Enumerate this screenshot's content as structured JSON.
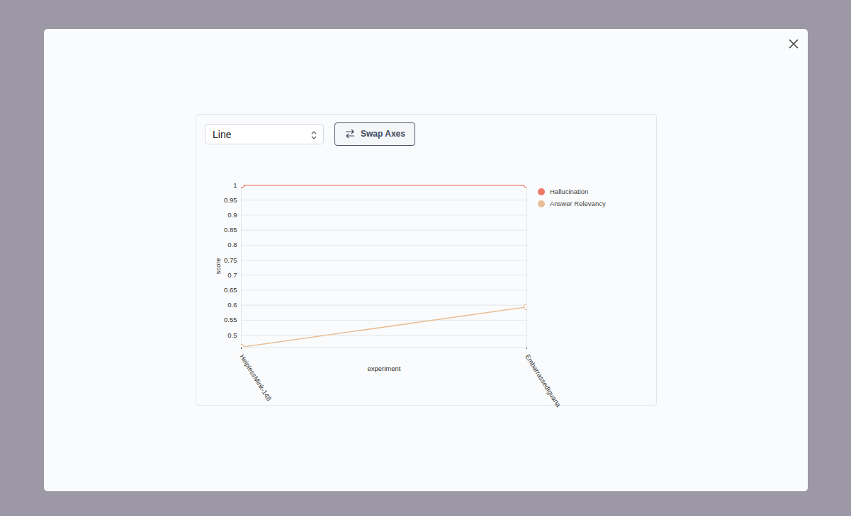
{
  "chart_data": {
    "type": "line",
    "x_label": "experiment",
    "y_label": "score",
    "categories": [
      "HelplessMink-148",
      "EmbarrassedIguana"
    ],
    "series": [
      {
        "name": "Hallucination",
        "color": "#ef7766",
        "values": [
          1,
          1
        ]
      },
      {
        "name": "Answer Relevancy",
        "color": "#e8bf98",
        "values": [
          0.46,
          0.594
        ]
      }
    ],
    "ylim": [
      0.46,
      1
    ],
    "yticks": [
      0.5,
      0.55,
      0.6,
      0.65,
      0.7,
      0.75,
      0.8,
      0.85,
      0.9,
      0.95,
      1
    ],
    "grid": true,
    "legend": "right",
    "marker": "circle"
  },
  "ui": {
    "select": "Line",
    "button": "Swap Axes"
  }
}
